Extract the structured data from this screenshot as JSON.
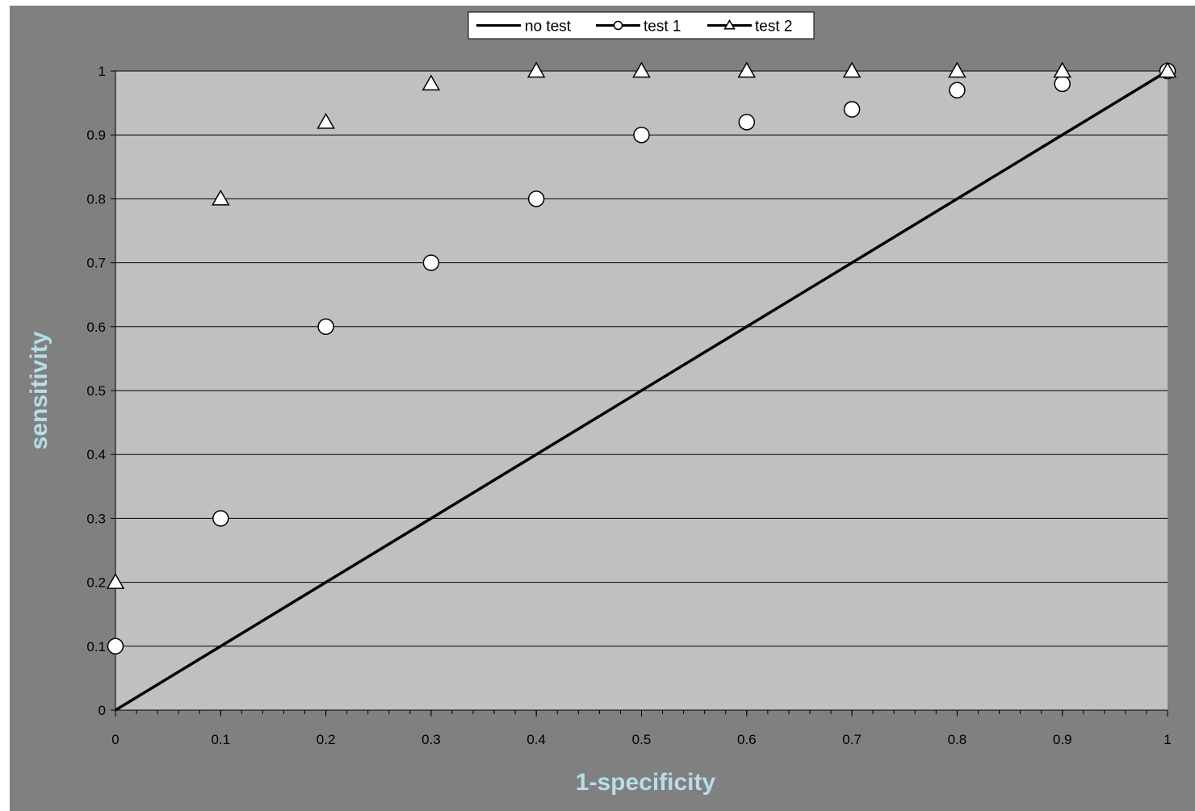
{
  "chart_data": {
    "type": "scatter",
    "title": "",
    "xlabel": "1-specificity",
    "ylabel": "sensitivity",
    "xlim": [
      0,
      1
    ],
    "ylim": [
      0,
      1
    ],
    "x_ticks": [
      "0",
      "0.1",
      "0.2",
      "0.3",
      "0.4",
      "0.5",
      "0.6",
      "0.7",
      "0.8",
      "0.9",
      "1"
    ],
    "y_ticks": [
      "0",
      "0.1",
      "0.2",
      "0.3",
      "0.4",
      "0.5",
      "0.6",
      "0.7",
      "0.8",
      "0.9",
      "1"
    ],
    "grid": "horizontal major gridlines",
    "legend_position": "top-center",
    "colors": {
      "outer_background": "#808080",
      "plot_background": "#c0c0c0",
      "axis_title": "#b7dde8",
      "gridline": "#000000",
      "line": "#000000",
      "marker_fill": "#ffffff"
    },
    "series": [
      {
        "name": "no test",
        "style": "line",
        "x": [
          0,
          1
        ],
        "y": [
          0,
          1
        ]
      },
      {
        "name": "test 1",
        "style": "circle-marker",
        "x": [
          0,
          0.1,
          0.2,
          0.3,
          0.4,
          0.5,
          0.6,
          0.7,
          0.8,
          0.9,
          1
        ],
        "y": [
          0.1,
          0.3,
          0.6,
          0.7,
          0.8,
          0.9,
          0.92,
          0.94,
          0.97,
          0.98,
          1
        ]
      },
      {
        "name": "test 2",
        "style": "triangle-marker",
        "x": [
          0,
          0.1,
          0.2,
          0.3,
          0.4,
          0.5,
          0.6,
          0.7,
          0.8,
          0.9,
          1
        ],
        "y": [
          0.2,
          0.8,
          0.92,
          0.98,
          1,
          1,
          1,
          1,
          1,
          1,
          1
        ]
      }
    ]
  }
}
